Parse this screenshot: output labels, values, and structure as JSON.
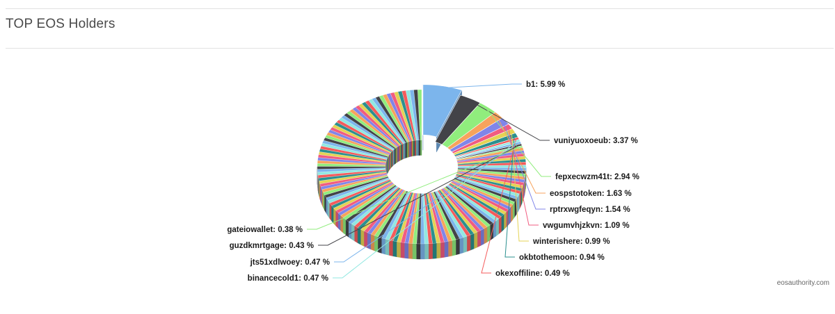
{
  "header": {
    "title": "TOP EOS Holders"
  },
  "footer": {
    "credit": "eosauthority.com"
  },
  "chart_data": {
    "type": "pie",
    "variant": "3d-donut",
    "title": "TOP EOS Holders",
    "value_unit": "%",
    "labeled_slices": [
      {
        "name": "b1",
        "value": 5.99,
        "color": "#7cb5ec",
        "label": "b1: 5.99 %"
      },
      {
        "name": "vuniyuoxoeub",
        "value": 3.37,
        "color": "#434348",
        "label": "vuniyuoxoeub: 3.37 %"
      },
      {
        "name": "fepxecwzm41t",
        "value": 2.94,
        "color": "#90ed7d",
        "label": "fepxecwzm41t: 2.94 %"
      },
      {
        "name": "eospstotoken",
        "value": 1.63,
        "color": "#f7a35c",
        "label": "eospstotoken: 1.63 %"
      },
      {
        "name": "rptrxwgfeqyn",
        "value": 1.54,
        "color": "#8085e9",
        "label": "rptrxwgfeqyn: 1.54 %"
      },
      {
        "name": "vwgumvhjzkvn",
        "value": 1.09,
        "color": "#f15c80",
        "label": "vwgumvhjzkvn: 1.09 %"
      },
      {
        "name": "winterishere",
        "value": 0.99,
        "color": "#e4d354",
        "label": "winterishere: 0.99 %"
      },
      {
        "name": "okbtothemoon",
        "value": 0.94,
        "color": "#2b908f",
        "label": "okbtothemoon: 0.94 %"
      },
      {
        "name": "okexoffiline",
        "value": 0.49,
        "color": "#f45b5b",
        "label": "okexoffiline: 0.49 %"
      },
      {
        "name": "binancecold1",
        "value": 0.47,
        "color": "#91e8e1",
        "label": "binancecold1: 0.47 %"
      },
      {
        "name": "jts51xdlwoey",
        "value": 0.47,
        "color": "#7cb5ec",
        "label": "jts51xdlwoey: 0.47 %"
      },
      {
        "name": "guzdkmrtgage",
        "value": 0.43,
        "color": "#434348",
        "label": "guzdkmrtgage: 0.43 %"
      },
      {
        "name": "gateiowallet",
        "value": 0.38,
        "color": "#90ed7d",
        "label": "gateiowallet: 0.38 %"
      }
    ],
    "unlabeled_slices": {
      "count": 130,
      "approx_value_each": 0.6
    },
    "palette": [
      "#7cb5ec",
      "#434348",
      "#90ed7d",
      "#f7a35c",
      "#8085e9",
      "#f15c80",
      "#e4d354",
      "#2b908f",
      "#f45b5b",
      "#91e8e1"
    ],
    "legend": "none",
    "data_labels": "connector-lines"
  }
}
